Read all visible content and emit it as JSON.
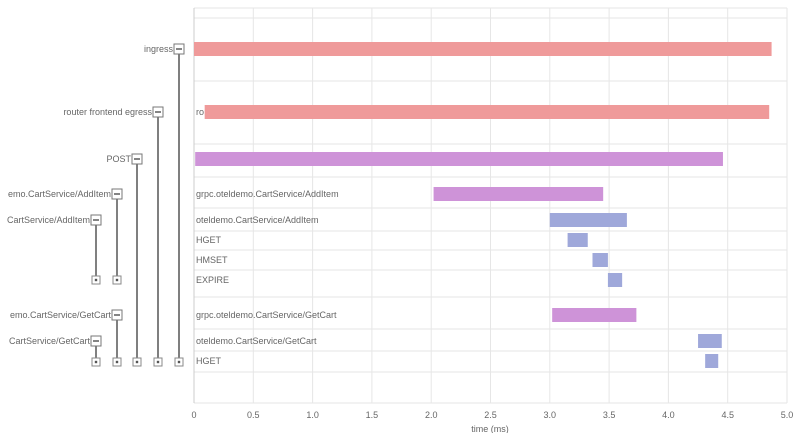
{
  "colors": {
    "ingress": "#ef9a9a",
    "egress": "#ef9a9a",
    "grpc": "#ce93d8",
    "service": "#9fa8da",
    "tree_line": "#555555",
    "grid": "#e6e6e6"
  },
  "chart_data": {
    "type": "gantt",
    "xlabel": "time (ms)",
    "xlim": [
      0,
      5.0
    ],
    "xticks": [
      "0",
      "0.5",
      "1.0",
      "1.5",
      "2.0",
      "2.5",
      "3.0",
      "3.5",
      "4.0",
      "4.5",
      "5.0"
    ],
    "tree_labels": [
      {
        "text": "ingress",
        "row": 0
      },
      {
        "text": "router frontend egress",
        "row": 1
      },
      {
        "text": "POST",
        "row": 2
      },
      {
        "text": "emo.CartService/AddItem",
        "row": 3
      },
      {
        "text": "CartService/AddItem",
        "row": 4
      },
      {
        "text": "emo.CartService/GetCart",
        "row": 8
      },
      {
        "text": "CartService/GetCart",
        "row": 9
      }
    ],
    "spans": [
      {
        "row": 0,
        "start": 0.0,
        "end": 4.87,
        "kind": "ingress",
        "label": ""
      },
      {
        "row": 1,
        "start": 0.09,
        "end": 4.85,
        "kind": "egress",
        "label": "ro"
      },
      {
        "row": 2,
        "start": 0.01,
        "end": 4.46,
        "kind": "grpc",
        "label": ""
      },
      {
        "row": 3,
        "start": 2.02,
        "end": 3.45,
        "kind": "grpc",
        "label": "grpc.oteldemo.CartService/AddItem"
      },
      {
        "row": 4,
        "start": 3.0,
        "end": 3.65,
        "kind": "service",
        "label": "oteldemo.CartService/AddItem"
      },
      {
        "row": 5,
        "start": 3.15,
        "end": 3.32,
        "kind": "service",
        "label": "HGET"
      },
      {
        "row": 6,
        "start": 3.36,
        "end": 3.49,
        "kind": "service",
        "label": "HMSET"
      },
      {
        "row": 7,
        "start": 3.49,
        "end": 3.61,
        "kind": "service",
        "label": "EXPIRE"
      },
      {
        "row": 8,
        "start": 3.02,
        "end": 3.73,
        "kind": "grpc",
        "label": "grpc.oteldemo.CartService/GetCart"
      },
      {
        "row": 9,
        "start": 4.25,
        "end": 4.45,
        "kind": "service",
        "label": "oteldemo.CartService/GetCart"
      },
      {
        "row": 10,
        "start": 4.31,
        "end": 4.42,
        "kind": "service",
        "label": "HGET"
      }
    ]
  }
}
